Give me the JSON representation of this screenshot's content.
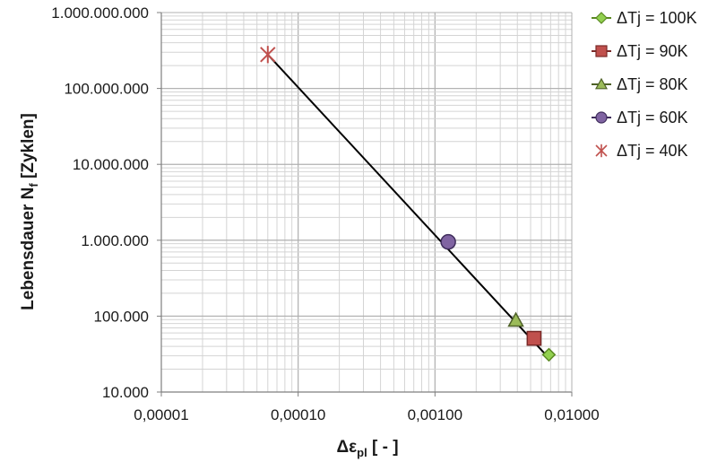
{
  "chart_data": {
    "type": "scatter",
    "x_scale": "log",
    "y_scale": "log",
    "xlim": [
      1e-05,
      0.01
    ],
    "ylim": [
      10000,
      1000000000
    ],
    "grid": true,
    "legend_position": "right",
    "xlabel": {
      "main": "Δε",
      "sub": "pl",
      "rest": " [ - ]"
    },
    "ylabel": {
      "main": "Lebensdauer N",
      "sub": "f",
      "rest": " [Zyklen]"
    },
    "x_ticks": [
      {
        "value": 1e-05,
        "label": "0,00001"
      },
      {
        "value": 0.0001,
        "label": "0,00010"
      },
      {
        "value": 0.001,
        "label": "0,00100"
      },
      {
        "value": 0.01,
        "label": "0,01000"
      }
    ],
    "y_ticks": [
      {
        "value": 10000,
        "label": "10.000"
      },
      {
        "value": 100000,
        "label": "100.000"
      },
      {
        "value": 1000000,
        "label": "1.000.000"
      },
      {
        "value": 10000000,
        "label": "10.000.000"
      },
      {
        "value": 100000000,
        "label": "100.000.000"
      },
      {
        "value": 1000000000,
        "label": "1.000.000.000"
      }
    ],
    "fit_line": {
      "x": [
        6e-05,
        0.0068
      ],
      "y": [
        280000000,
        28000
      ],
      "color": "#000000"
    },
    "series": [
      {
        "name": "ΔTj = 100K",
        "marker": "diamond",
        "color": "#92d050",
        "stroke": "#5b8a23",
        "x": 0.0068,
        "y": 31000
      },
      {
        "name": "ΔTj = 90K",
        "marker": "square",
        "color": "#c0504d",
        "stroke": "#7a2a28",
        "x": 0.0053,
        "y": 51000
      },
      {
        "name": "ΔTj = 80K",
        "marker": "triangle",
        "color": "#9bbb59",
        "stroke": "#4f6228",
        "x": 0.0039,
        "y": 88000
      },
      {
        "name": "ΔTj = 60K",
        "marker": "circle",
        "color": "#8064a2",
        "stroke": "#3f2d5c",
        "x": 0.00125,
        "y": 950000
      },
      {
        "name": "ΔTj = 40K",
        "marker": "star",
        "color": "#c0504d",
        "stroke": "#c0504d",
        "x": 6e-05,
        "y": 280000000
      }
    ]
  }
}
